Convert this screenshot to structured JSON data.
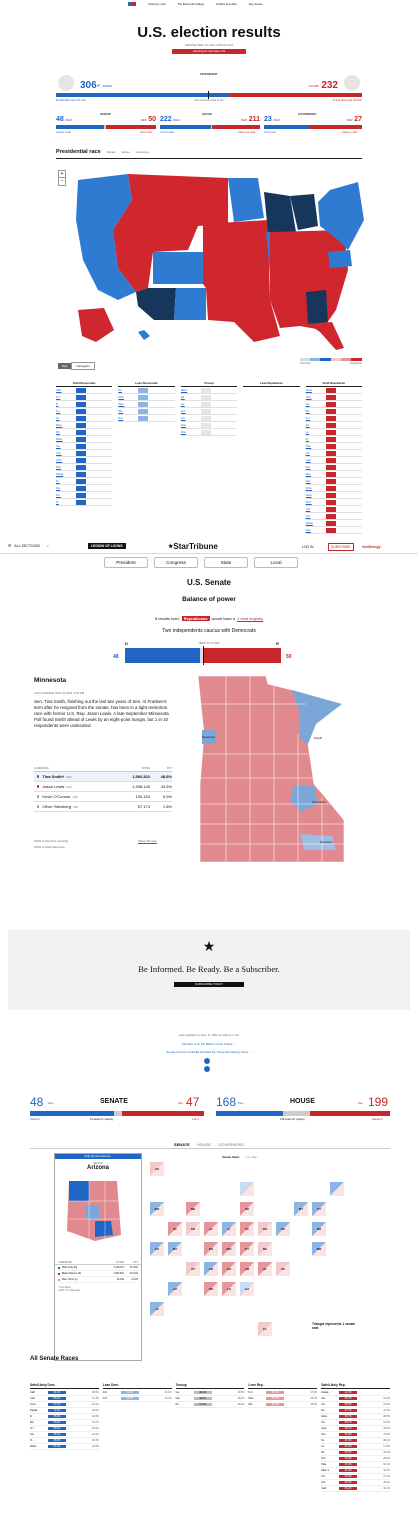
{
  "top_nav": {
    "items": [
      "Voting by mail",
      "The Electoral College",
      "Politics and data",
      "Key issues"
    ]
  },
  "s1": {
    "title": "U.S. election results",
    "updated": "UPDATED MAR. 16, 2021, 8:58 A.M. EST",
    "checking": "Checking for new data in 29",
    "president_label": "PRESIDENT",
    "biden_ev": "306",
    "biden_name": "BIDEN",
    "biden_votes": "81,283,098 votes (51.3%)",
    "trump_ev": "232",
    "trump_name": "TRUMP",
    "trump_votes": "74,222,960 votes (46.9%)",
    "to_win": "270 electoral votes to win",
    "senate_label": "SENATE",
    "house_label": "HOUSE",
    "governors_label": "GOVERNORS",
    "senate_dem": "48",
    "senate_dem_lbl": "DEM",
    "senate_rep": "50",
    "senate_rep_lbl": "REP",
    "house_dem": "222",
    "house_dem_lbl": "DEM",
    "house_rep": "211",
    "house_rep_lbl": "REP",
    "gov_dem": "23",
    "gov_dem_lbl": "DEM",
    "gov_rep": "27",
    "gov_rep_lbl": "REP",
    "senate_dem_sub": "Gained 1 seat",
    "senate_rep_sub": "Lost 1 seat",
    "house_dem_sub": "Lost 11 seats",
    "house_rep_sub": "Gained 10 seats",
    "gov_dem_sub": "Lost 1 seat",
    "gov_rep_sub": "Gained 1 seat",
    "race_tab_title": "Presidential race",
    "race_tabs": [
      "Senate",
      "House",
      "Governors"
    ],
    "zoom_plus": "+",
    "zoom_minus": "−",
    "map_toggle": [
      "Map",
      "Cartogram"
    ],
    "legend_dem": "Democrat",
    "legend_rep": "Republican",
    "columns": [
      {
        "title": "Solid Democratic",
        "rows": [
          "Calif.",
          "N.Y.",
          "Ill.",
          "N.J.",
          "Va.",
          "Mass.",
          "Md.",
          "Wash.",
          "Ore.",
          "Colo.",
          "Conn.",
          "N.M.",
          "Hawaii",
          "R.I.",
          "Del.",
          "D.C.",
          "Vt."
        ]
      },
      {
        "title": "Lean Democratic",
        "rows": [
          "Pa.",
          "Mich.",
          "Minn.",
          "Wis.",
          "Nev."
        ]
      },
      {
        "title": "Tossup",
        "rows": [
          "Maine",
          "Fla.",
          "Ga.",
          "Ariz.",
          "N.C.",
          "Iowa",
          "Ohio"
        ]
      },
      {
        "title": "Lean Republican",
        "rows": []
      },
      {
        "title": "Solid Republican",
        "rows": [
          "Texas",
          "Tenn.",
          "Ind.",
          "Mo.",
          "S.C.",
          "Ala.",
          "La.",
          "Ky.",
          "Okla.",
          "Ark.",
          "Utah",
          "Kan.",
          "Miss.",
          "Neb.",
          "W.Va.",
          "Idaho",
          "Mont.",
          "S.D.",
          "N.D.",
          "Alaska",
          "Wyo."
        ]
      }
    ]
  },
  "s2": {
    "all_sections": "ALL SECTIONS",
    "promo": "LEGION OF LOONS",
    "brand": "StarTribune",
    "login": "LOG IN",
    "subscribe": "SUBSCRIBE",
    "sponsor": "XcelEnergy",
    "tabs": [
      "President",
      "Congress",
      "State",
      "Local"
    ],
    "section_title": "U.S. Senate",
    "balance": "Balance of power",
    "if_results": "If results hold,",
    "republicans": "Republicans",
    "would_have": "would have a",
    "majority": "1 seat majority",
    "caucus": "Two independents caucus with Democrats",
    "d": "D",
    "r": "R",
    "dem_count": "48",
    "rep_count": "50",
    "need": "NEED 51 TO WIN",
    "state": "Minnesota",
    "last_change": "LAST CHANGE: NOV 24 2020, 2:54 PM",
    "story": "Sen. Tina Smith, finishing out the last two years of Sen. Al Franken's term after he resigned from the senate, has been in a tight reelection race with former U.S. Rep. Jason Lewis. A late-September Minnesota Poll found Smith ahead of Lewis by an eight-point margin, but 1 in 10 respondents were undecided.",
    "col_candidate": "CANDIDATE",
    "col_votes": "VOTES",
    "col_pct": "PCT",
    "candidates": [
      {
        "name": "Tina Smith*",
        "party": "DFM",
        "votes": "1,566,522",
        "pct": "48.8%"
      },
      {
        "name": "Jason Lewis",
        "party": "GOP",
        "votes": "1,398,145",
        "pct": "43.5%"
      },
      {
        "name": "Kevin O'Connor",
        "party": "LMN",
        "votes": "190,154",
        "pct": "5.9%"
      },
      {
        "name": "Oliver Steinberg",
        "party": "GRP",
        "votes": "57,174",
        "pct": "1.8%"
      }
    ],
    "precincts": "100% of precincts reporting",
    "total_votes": "100% of 2020 total votes",
    "share": "Share this race",
    "cities": [
      "Moorhead",
      "Duluth",
      "Twin Cities",
      "Rochester"
    ]
  },
  "ad": {
    "tagline": "Be Informed. Be Ready. Be a Subscriber.",
    "cta": "SUBSCRIBE TODAY"
  },
  "s3": {
    "updated": "Last updated on Nov. 9, 2022 at 4:00 a.m. ET",
    "links": [
      "Abortion is on the Ballot in Five States →",
      "Senate Control Could Be Decided By These Remaining Votes →"
    ],
    "senate_dem": "48",
    "senate_title": "SENATE",
    "senate_rep": "47",
    "senate_dem_sub": "Gained 1",
    "senate_needed": "51 seats for majority",
    "senate_rep_sub": "Lost 1",
    "house_dem": "168",
    "house_title": "HOUSE",
    "house_rep": "199",
    "house_needed": "218 seats for majority",
    "house_rep_sub": "Gained 5",
    "dem_lbl": "Dem.",
    "rep_lbl": "Rep.",
    "mode_tabs": [
      "SENATE",
      "HOUSE",
      "GOVERNORS"
    ],
    "view_toggle": [
      "Senate Seats",
      "U.S. Map"
    ],
    "popup_header": "Kelly (D) wins Arizona ›",
    "popup_state_small": "SENATE",
    "popup_state": "Arizona",
    "popup_cands": [
      {
        "name": "Mark Kelly (D)",
        "votes": "1,128,917",
        "pct": "51.78%"
      },
      {
        "name": "Blake Masters (R)",
        "votes": "1,005,661",
        "pct": "46.10%"
      },
      {
        "name": "Marc Victor (L)",
        "votes": "46,199",
        "pct": "2.12%"
      }
    ],
    "popup_col_cand": "CANDIDATE",
    "popup_col_votes": "VOTES",
    "popup_col_pct": "PCT",
    "popup_note": "* Incumbent",
    "popup_total": "2,180,777 total votes",
    "callout": "Triangle represents 1 senate seat",
    "all_races": "All Senate Races",
    "race_cols": [
      "Safe/Likely Dem.",
      "Lean Dem.",
      "Tossup",
      "Lean Rep.",
      "Safe/Likely Rep."
    ],
    "safe_dem": [
      {
        "st": "Calif.",
        "v": "61.1%",
        "o": "38.9%"
      },
      {
        "st": "Colo.",
        "v": "55.2%",
        "o": "41.4%"
      },
      {
        "st": "Conn.",
        "v": "57.1%",
        "o": "42.1%"
      },
      {
        "st": "Hawaii",
        "v": "71.4%",
        "o": "26.0%"
      },
      {
        "st": "Ill.",
        "v": "55.9%",
        "o": "42.0%"
      },
      {
        "st": "Md.",
        "v": "65.8%",
        "o": "33.7%"
      },
      {
        "st": "N.Y.",
        "v": "56.8%",
        "o": "42.9%"
      },
      {
        "st": "Ore.",
        "v": "55.1%",
        "o": "41.4%"
      },
      {
        "st": "Vt.",
        "v": "68.6%",
        "o": "28.3%"
      },
      {
        "st": "Wash.",
        "v": "57.4%",
        "o": "42.6%"
      }
    ],
    "lean_dem": [
      {
        "st": "Ariz.",
        "v": "51.8%",
        "o": "46.1%"
      },
      {
        "st": "N.H.",
        "v": "53.9%",
        "o": "44.4%"
      }
    ],
    "tossup": [
      {
        "st": "Ga.",
        "v": "49.4%",
        "o": "48.5%"
      },
      {
        "st": "Nev.",
        "v": "48.8%",
        "o": "48.1%"
      },
      {
        "st": "Pa.",
        "v": "51.2%",
        "o": "46.4%"
      }
    ],
    "lean_rep": [
      {
        "st": "N.C.",
        "v": "50.7%",
        "o": "47.3%"
      },
      {
        "st": "Ohio",
        "v": "53.3%",
        "o": "46.7%"
      },
      {
        "st": "Wis.",
        "v": "50.5%",
        "o": "49.5%"
      }
    ],
    "safe_rep": [
      {
        "st": "Alaska",
        "v": "44.3%",
        "o": "--"
      },
      {
        "st": "Ala.",
        "v": "66.7%",
        "o": "31.0%"
      },
      {
        "st": "Ark.",
        "v": "65.8%",
        "o": "31.0%"
      },
      {
        "st": "Fla.",
        "v": "57.7%",
        "o": "41.3%"
      },
      {
        "st": "Idaho",
        "v": "60.7%",
        "o": "28.5%"
      },
      {
        "st": "Ind.",
        "v": "58.7%",
        "o": "37.9%"
      },
      {
        "st": "Iowa",
        "v": "56.1%",
        "o": "43.9%"
      },
      {
        "st": "Kan.",
        "v": "60.0%",
        "o": "37.0%"
      },
      {
        "st": "Ky.",
        "v": "61.8%",
        "o": "38.2%"
      },
      {
        "st": "La.",
        "v": "61.6%",
        "o": "17.9%"
      },
      {
        "st": "Mo.",
        "v": "55.4%",
        "o": "42.2%"
      },
      {
        "st": "N.D.",
        "v": "56.4%",
        "o": "25.0%"
      },
      {
        "st": "Okla.",
        "v": "64.3%",
        "o": "32.1%"
      },
      {
        "st": "Okla. S.",
        "v": "61.8%",
        "o": "35.3%"
      },
      {
        "st": "S.C.",
        "v": "62.9%",
        "o": "37.1%"
      },
      {
        "st": "S.D.",
        "v": "69.6%",
        "o": "30.4%"
      },
      {
        "st": "Utah",
        "v": "53.2%",
        "o": "43.1%"
      }
    ]
  }
}
